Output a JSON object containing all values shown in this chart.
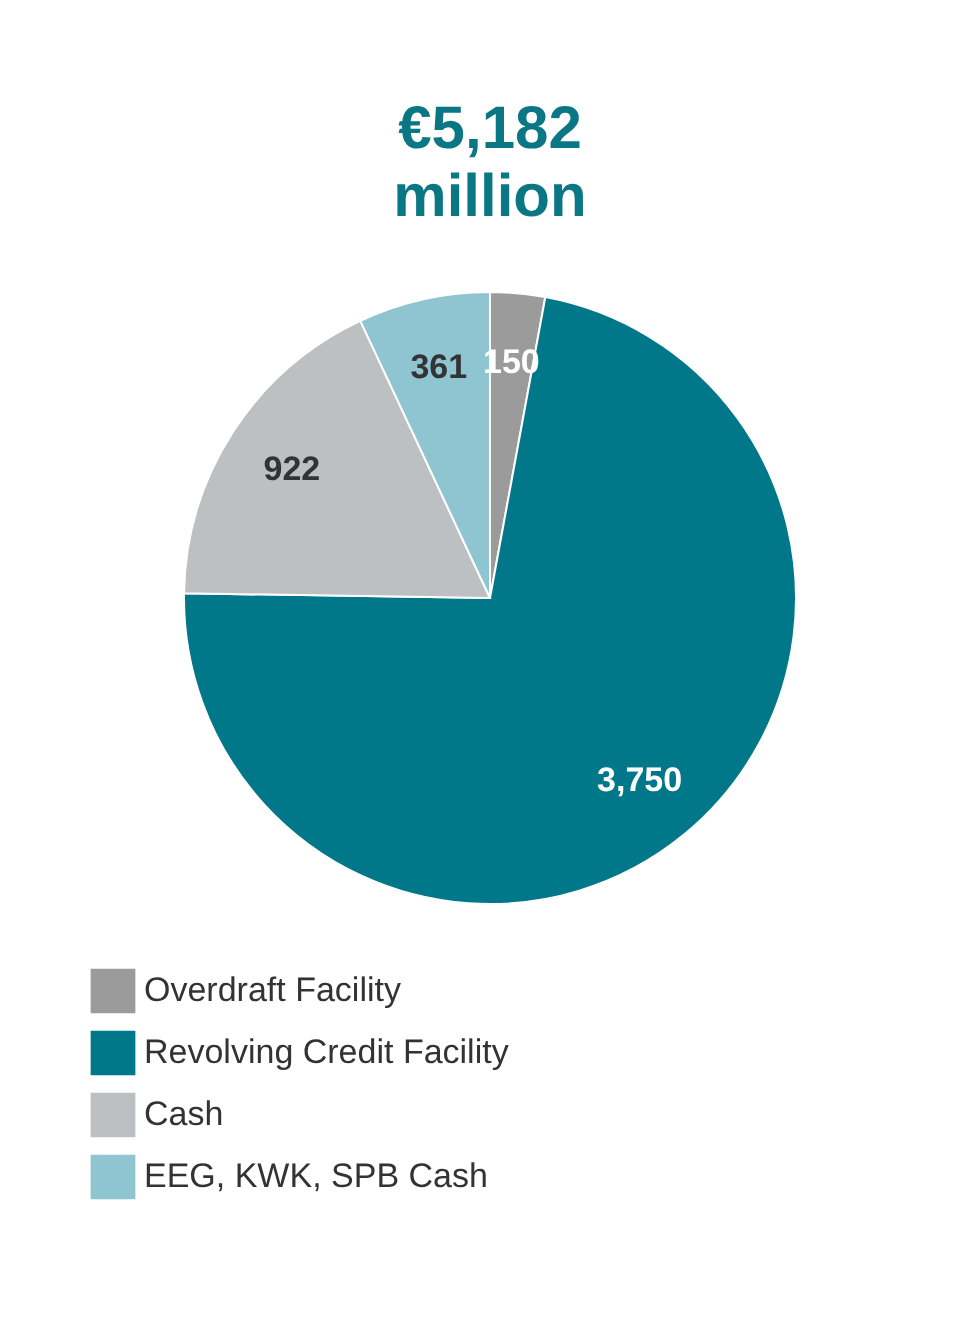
{
  "chart_data": {
    "type": "pie",
    "title": "€5,182 million",
    "categories": [
      "Overdraft Facility",
      "Revolving Credit Facility",
      "Cash",
      "EEG, KWK, SPB Cash"
    ],
    "values": [
      150,
      3750,
      922,
      361
    ],
    "colors": [
      "#9b9b9b",
      "#00788a",
      "#bcc0c2",
      "#8fc5d0"
    ],
    "value_labels": [
      "150",
      "3,750",
      "922",
      "361"
    ],
    "legend": "bottom"
  }
}
